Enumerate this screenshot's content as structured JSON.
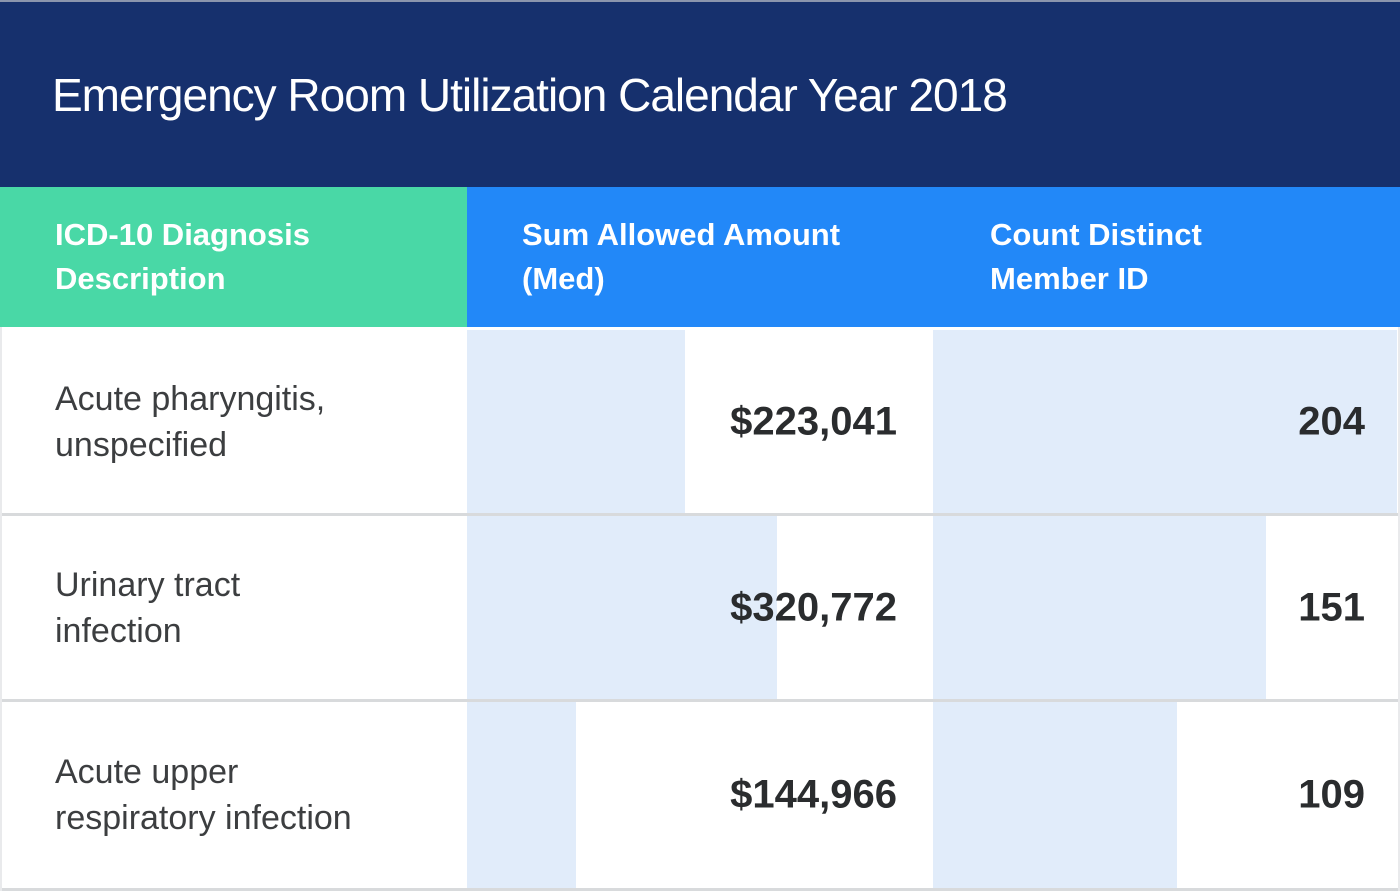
{
  "header": {
    "title": "Emergency Room Utilization Calendar Year 2018"
  },
  "table": {
    "columns": [
      {
        "label": "ICD-10 Diagnosis\nDescription"
      },
      {
        "label": "Sum Allowed Amount\n(Med)"
      },
      {
        "label": "Count Distinct\nMember ID"
      }
    ]
  },
  "chart_data": {
    "type": "table",
    "title": "Emergency Room Utilization Calendar Year 2018",
    "columns": [
      "ICD-10 Diagnosis Description",
      "Sum Allowed Amount (Med)",
      "Count Distinct Member ID"
    ],
    "rows": [
      {
        "diagnosis": "Acute pharyngitis,\nunspecified",
        "sum_allowed": "$223,041",
        "sum_allowed_value": 223041,
        "count_distinct": "204",
        "count_distinct_value": 204,
        "sum_bar_pct": 47.1,
        "count_bar_pct": 99.4
      },
      {
        "diagnosis": "Urinary tract\ninfection",
        "sum_allowed": "$320,772",
        "sum_allowed_value": 320772,
        "count_distinct": "151",
        "count_distinct_value": 151,
        "sum_bar_pct": 67.0,
        "count_bar_pct": 71.3
      },
      {
        "diagnosis": "Acute upper\nrespiratory infection",
        "sum_allowed": "$144,966",
        "sum_allowed_value": 144966,
        "count_distinct": "109",
        "count_distinct_value": 109,
        "sum_bar_pct": 23.5,
        "count_bar_pct": 52.2
      }
    ],
    "legend": "none",
    "grid": "row-dividers"
  },
  "colors": {
    "banner": "#16306d",
    "header_blue": "#2288f8",
    "header_green": "#49d8a6",
    "bar_fill": "#e1ecfa",
    "divider": "#d8dadc",
    "top_edge": "#8b95ad",
    "diagnosis_text": "#3c3e40",
    "value_text": "#2a2c2e",
    "header_text": "#ffffff"
  }
}
